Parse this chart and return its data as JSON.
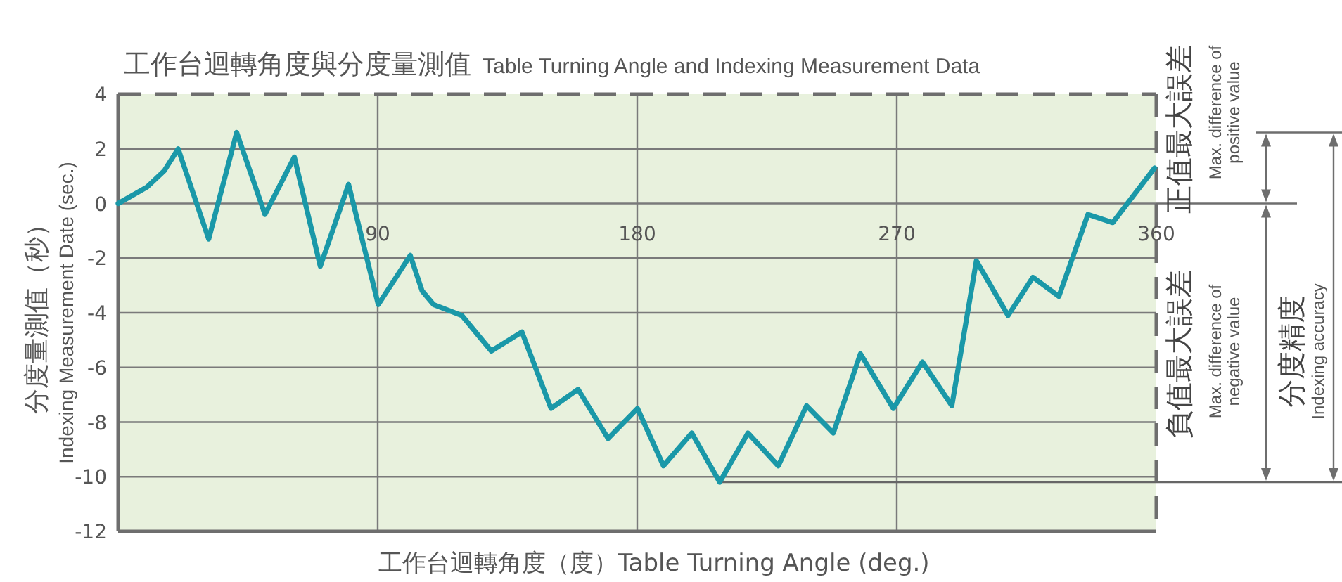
{
  "chart_data": {
    "type": "line",
    "title": "工作台迴轉角度與分度量測值",
    "subtitle": "Table Turning Angle and Indexing Measurement Data",
    "xlabel": "工作台迴轉角度（度）Table Turning Angle (deg.)",
    "ylabel": "分度量測值（秒）",
    "x": [
      0,
      10,
      16,
      20.8,
      31.4,
      41.1,
      50.9,
      61.1,
      70.1,
      79.9,
      90.2,
      101.3,
      105.4,
      109.4,
      119.2,
      129.4,
      140,
      150.1,
      159.5,
      169.9,
      180.1,
      189.1,
      198.9,
      208.6,
      218.4,
      228.9,
      238.7,
      248,
      257.4,
      268.8,
      278.9,
      289.1,
      297.6,
      308.6,
      317.2,
      326.2,
      336.3,
      344.9,
      359.4
    ],
    "series": [
      {
        "color": "#1a98a8",
        "values": [
          0,
          0.6,
          1.2,
          2.0,
          -1.3,
          2.6,
          -0.4,
          1.7,
          -2.3,
          0.7,
          -3.7,
          -1.9,
          -3.2,
          -3.7,
          -4.1,
          -5.4,
          -4.7,
          -7.5,
          -6.8,
          -8.6,
          -7.5,
          -9.6,
          -8.4,
          -10.2,
          -8.4,
          -9.6,
          -7.4,
          -8.4,
          -5.5,
          -7.5,
          -5.8,
          -7.4,
          -2.1,
          -4.1,
          -2.7,
          -3.4,
          -0.4,
          -0.7,
          1.3
        ]
      }
    ],
    "xlim": [
      0,
      360
    ],
    "xticks": [
      {
        "value": 0,
        "label": null
      },
      90,
      180,
      270,
      360
    ],
    "ylim": [
      -12,
      4
    ],
    "yticks": [
      -12,
      -10,
      -8,
      -6,
      -4,
      -2,
      0,
      2,
      4
    ],
    "grid": true,
    "marker": "none",
    "line_style": "solid",
    "ref_lines": [
      {
        "axis": "y",
        "value": -10.2,
        "color": "#666666"
      }
    ],
    "annotations": [
      "Indexing Measurement Date (sec.)",
      "正值最大誤差",
      "Max. difference of positive value",
      "負值最大誤差",
      "Max. difference of negative value",
      "分度精度",
      "Indexing accuracy"
    ]
  }
}
